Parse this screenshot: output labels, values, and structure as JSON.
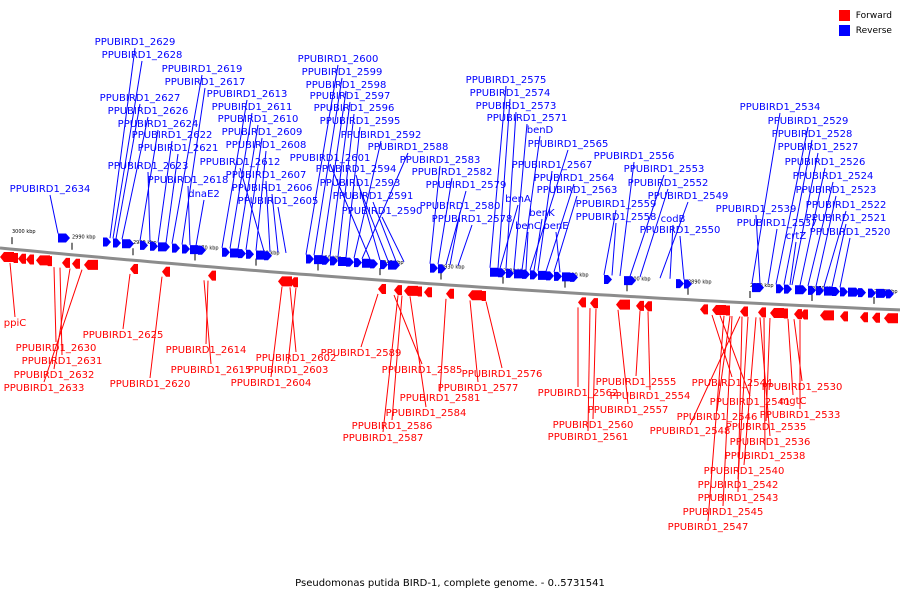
{
  "colors": {
    "forward": "#ff0000",
    "reverse": "#0000ff",
    "backbone": "#8c8c8c",
    "text": "#000000"
  },
  "legend": [
    {
      "label": "Forward",
      "color": "#ff0000"
    },
    {
      "label": "Reverse",
      "color": "#0000ff"
    }
  ],
  "caption": "Pseudomonas putida BIRD-1, complete genome. - 0..5731541",
  "ticks": [
    "3000 kbp",
    "2990 kbp",
    "2980 kbp",
    "2970 kbp",
    "2960 kbp",
    "2950 kbp",
    "2940 kbp",
    "2930 kbp",
    "2920 kbp",
    "2910 kbp",
    "2900 kbp",
    "2890 kbp",
    "2880 kbp",
    "2870 kbp",
    "2860 kbp"
  ],
  "reverse_labels": [
    "PPUBIRD1_2629",
    "PPUBIRD1_2628",
    "PPUBIRD1_2627",
    "PPUBIRD1_2626",
    "PPUBIRD1_2624",
    "PPUBIRD1_2623",
    "PPUBIRD1_2622",
    "PPUBIRD1_2621",
    "PPUBIRD1_2619",
    "PPUBIRD1_2617",
    "PPUBIRD1_2618",
    "PPUBIRD1_2613",
    "PPUBIRD1_2611",
    "PPUBIRD1_2610",
    "PPUBIRD1_2609",
    "PPUBIRD1_2608",
    "PPUBIRD1_2612",
    "PPUBIRD1_2607",
    "PPUBIRD1_2606",
    "PPUBIRD1_2605",
    "dnaE2",
    "PPUBIRD1_2634",
    "PPUBIRD1_2600",
    "PPUBIRD1_2599",
    "PPUBIRD1_2598",
    "PPUBIRD1_2597",
    "PPUBIRD1_2596",
    "PPUBIRD1_2595",
    "PPUBIRD1_2592",
    "PPUBIRD1_2588",
    "PPUBIRD1_2601",
    "PPUBIRD1_2594",
    "PPUBIRD1_2593",
    "PPUBIRD1_2591",
    "PPUBIRD1_2590",
    "PPUBIRD1_2583",
    "PPUBIRD1_2582",
    "PPUBIRD1_2579",
    "PPUBIRD1_2580",
    "PPUBIRD1_2578",
    "PPUBIRD1_2575",
    "PPUBIRD1_2574",
    "PPUBIRD1_2573",
    "PPUBIRD1_2571",
    "benD",
    "PPUBIRD1_2565",
    "PPUBIRD1_2567",
    "PPUBIRD1_2564",
    "PPUBIRD1_2563",
    "benA",
    "benK",
    "benC",
    "benE",
    "PPUBIRD1_2559",
    "PPUBIRD1_2558",
    "PPUBIRD1_2556",
    "PPUBIRD1_2553",
    "PPUBIRD1_2552",
    "PPUBIRD1_2549",
    "codB",
    "PPUBIRD1_2550",
    "PPUBIRD1_2534",
    "PPUBIRD1_2529",
    "PPUBIRD1_2528",
    "PPUBIRD1_2527",
    "PPUBIRD1_2526",
    "PPUBIRD1_2524",
    "PPUBIRD1_2523",
    "PPUBIRD1_2522",
    "PPUBIRD1_2521",
    "PPUBIRD1_2520",
    "PPUBIRD1_2539",
    "PPUBIRD1_2537",
    "crtZ"
  ],
  "forward_labels": [
    "ppiC",
    "PPUBIRD1_2630",
    "PPUBIRD1_2631",
    "PPUBIRD1_2632",
    "PPUBIRD1_2633",
    "PPUBIRD1_2625",
    "PPUBIRD1_2620",
    "PPUBIRD1_2614",
    "PPUBIRD1_2615",
    "PPUBIRD1_2603",
    "PPUBIRD1_2604",
    "PPUBIRD1_2602",
    "PPUBIRD1_2589",
    "PPUBIRD1_2585",
    "PPUBIRD1_2584",
    "PPUBIRD1_2586",
    "PPUBIRD1_2587",
    "PPUBIRD1_2581",
    "PPUBIRD1_2577",
    "PPUBIRD1_2576",
    "PPUBIRD1_2562",
    "PPUBIRD1_2560",
    "PPUBIRD1_2561",
    "PPUBIRD1_2557",
    "PPUBIRD1_2555",
    "PPUBIRD1_2554",
    "PPUBIRD1_2544",
    "PPUBIRD1_2541",
    "PPUBIRD1_2546",
    "PPUBIRD1_2548",
    "PPUBIRD1_2535",
    "PPUBIRD1_2536",
    "PPUBIRD1_2538",
    "PPUBIRD1_2540",
    "PPUBIRD1_2542",
    "PPUBIRD1_2543",
    "PPUBIRD1_2545",
    "PPUBIRD1_2547",
    "PPUBIRD1_2530",
    "mgtC",
    "PPUBIRD1_2533"
  ]
}
